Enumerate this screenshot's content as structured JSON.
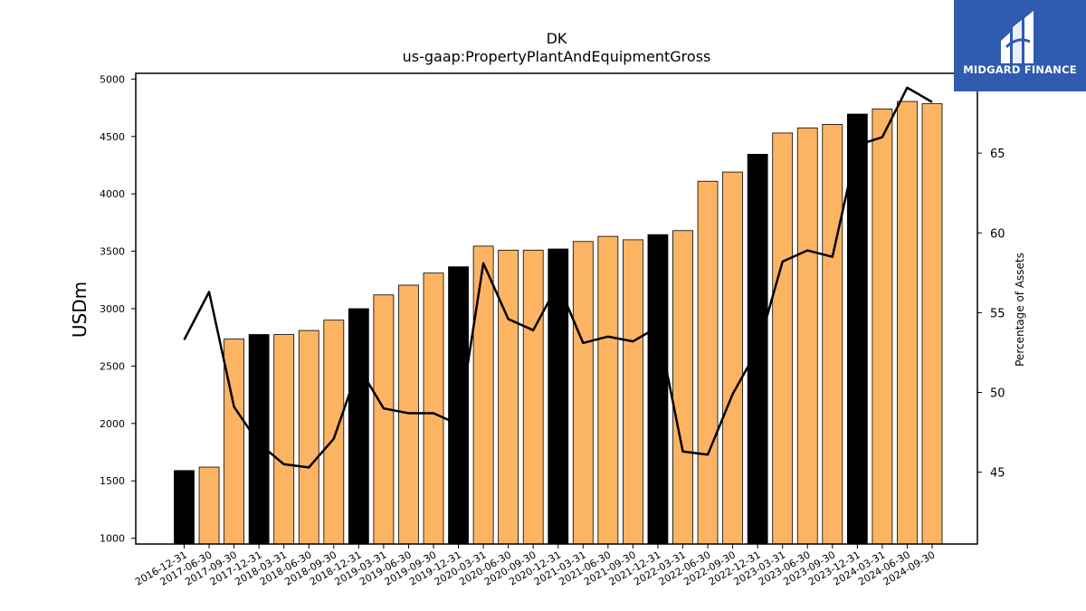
{
  "brand": {
    "name": "MIDGARD FINANCE",
    "color": "#2f5bb0"
  },
  "chart_data": {
    "type": "bar",
    "title": "DK",
    "subtitle": "us-gaap:PropertyPlantAndEquipmentGross",
    "ylabel": "USDm",
    "y2label": "Percentage of Assets",
    "ylim": [
      950,
      5050
    ],
    "y2lim": [
      40.5,
      70.0
    ],
    "yticks": [
      1000,
      1500,
      2000,
      2500,
      3000,
      3500,
      4000,
      4500,
      5000
    ],
    "y2ticks": [
      45,
      50,
      55,
      60,
      65
    ],
    "bar_color_default": "#fdb462",
    "bar_color_annual": "#000000",
    "line_color": "#000000",
    "categories": [
      "2016-12-31",
      "2017-06-30",
      "2017-09-30",
      "2017-12-31",
      "2018-03-31",
      "2018-06-30",
      "2018-09-30",
      "2018-12-31",
      "2019-03-31",
      "2019-06-30",
      "2019-09-30",
      "2019-12-31",
      "2020-03-31",
      "2020-06-30",
      "2020-09-30",
      "2020-12-31",
      "2021-03-31",
      "2021-06-30",
      "2021-09-30",
      "2021-12-31",
      "2022-03-31",
      "2022-06-30",
      "2022-09-30",
      "2022-12-31",
      "2023-03-31",
      "2023-06-30",
      "2023-09-30",
      "2023-12-31",
      "2024-03-31",
      "2024-06-30",
      "2024-09-30"
    ],
    "series": [
      {
        "type": "bar",
        "values": [
          1590,
          1620,
          2735,
          2775,
          2775,
          2810,
          2900,
          3000,
          3120,
          3205,
          3310,
          3365,
          3545,
          3510,
          3510,
          3520,
          3585,
          3630,
          3600,
          3645,
          3680,
          4110,
          4190,
          4345,
          4530,
          4575,
          4605,
          4695,
          4740,
          4805,
          4785
        ],
        "annual": [
          true,
          false,
          false,
          true,
          false,
          false,
          false,
          true,
          false,
          false,
          false,
          true,
          false,
          false,
          false,
          true,
          false,
          false,
          false,
          true,
          false,
          false,
          false,
          true,
          false,
          false,
          false,
          true,
          false,
          false,
          false
        ]
      },
      {
        "type": "line",
        "axis": "right",
        "values": [
          53.3,
          56.3,
          49.1,
          46.8,
          45.5,
          45.3,
          47.1,
          51.6,
          49.0,
          48.7,
          48.7,
          48.0,
          58.1,
          54.6,
          53.9,
          56.8,
          53.1,
          53.5,
          53.2,
          54.1,
          46.3,
          46.1,
          49.9,
          52.7,
          58.2,
          58.9,
          58.5,
          65.5,
          66.0,
          69.1,
          68.2
        ]
      }
    ],
    "grid": false,
    "legend": "none"
  }
}
